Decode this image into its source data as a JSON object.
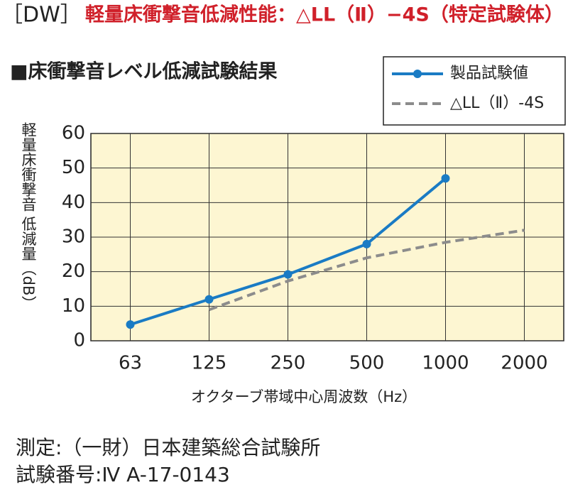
{
  "chart_data": {
    "type": "line",
    "label": "［DW］",
    "title": "軽量床衝撃音低減性能：△LL（Ⅱ）−4S（特定試験体）",
    "subtitle": "■床衝撃音レベル低減試験結果",
    "y_label": "軽量床衝撃音 低減量（dB）",
    "x_label": "オクターブ帯域中心周波数（Hz）",
    "categories": [
      "63",
      "125",
      "250",
      "500",
      "1000",
      "2000"
    ],
    "series": [
      {
        "name": "製品試験値",
        "color": "#1a7bc4",
        "dashed": false,
        "markers": true,
        "values": [
          4.7,
          12,
          19.2,
          28,
          47,
          null
        ]
      },
      {
        "name": "△LL（Ⅱ）-4S",
        "color": "#8c8c8c",
        "dashed": true,
        "markers": false,
        "values": [
          null,
          9,
          17.3,
          24,
          28.5,
          32
        ]
      }
    ],
    "ylim": [
      0,
      60
    ],
    "yticks": [
      0,
      10,
      20,
      30,
      40,
      50,
      60
    ],
    "grid": true,
    "legend": "top-right",
    "notes": [
      "測定:（一財）日本建築総合試験所",
      "試験番号:Ⅳ A-17-0143"
    ]
  }
}
